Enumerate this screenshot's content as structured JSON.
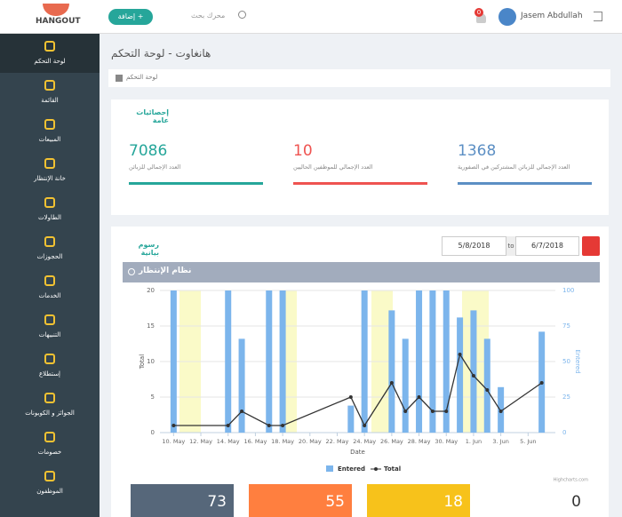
{
  "topbar": {
    "logo": "HANGOUT",
    "add_button": "إضافة",
    "search_placeholder": "محرك بحث",
    "notifications": "0",
    "user": "Jasem Abdullah"
  },
  "sidebar": [
    "لوحة التحكم",
    "القائمة",
    "المبيعات",
    "خانة الإنتظار",
    "الطاولات",
    "الحجوزات",
    "الخدمات",
    "التنبيهات",
    "إستطلاع",
    "الجوائز و الكوبونات",
    "خصومات",
    "الموظفون"
  ],
  "page_title": "هانغاوت - لوحة التحكم",
  "breadcrumb": "لوحة التحكم",
  "stats": {
    "title": "إحصائيات عامة",
    "items": [
      {
        "value": "7086",
        "label": "العدد الإجمالي للزبائن",
        "color": "#26a69a"
      },
      {
        "value": "10",
        "label": "العدد الإجمالي للموظفين الحاليين",
        "color": "#ef5350"
      },
      {
        "value": "1368",
        "label": "العدد الإجمالي للزبائن المشتركين في الصفورية",
        "color": "#5c8fc4"
      }
    ]
  },
  "charts_section": {
    "title": "رسوم بيانية",
    "from": "5/8/2018",
    "to_label": "to",
    "to": "6/7/2018"
  },
  "chart_data": {
    "type": "bar",
    "title": "نظام الإنتظار",
    "x": [
      10,
      14,
      15,
      17,
      18,
      23,
      24,
      26,
      27,
      28,
      29,
      30,
      31,
      32,
      33,
      34,
      37
    ],
    "series": [
      {
        "name": "Entered",
        "type": "bar",
        "axis": "y2",
        "color": "#7cb5ec",
        "values": [
          100,
          100,
          66,
          100,
          100,
          19,
          100,
          86,
          66,
          100,
          100,
          100,
          81,
          86,
          66,
          32,
          71
        ]
      },
      {
        "name": "Total",
        "type": "line",
        "color": "#333333",
        "values": [
          1,
          1,
          3,
          1,
          1,
          5,
          1,
          7,
          3,
          5,
          3,
          3,
          11,
          8,
          6,
          3,
          7
        ]
      }
    ],
    "xlim": [
      9,
      38
    ],
    "xticks": [
      {
        "value": 10,
        "label": "10. May"
      },
      {
        "value": 12,
        "label": "12. May"
      },
      {
        "value": 14,
        "label": "14. May"
      },
      {
        "value": 16,
        "label": "16. May"
      },
      {
        "value": 18,
        "label": "18. May"
      },
      {
        "value": 20,
        "label": "20. May"
      },
      {
        "value": 22,
        "label": "22. May"
      },
      {
        "value": 24,
        "label": "24. May"
      },
      {
        "value": 26,
        "label": "26. May"
      },
      {
        "value": 28,
        "label": "28. May"
      },
      {
        "value": 30,
        "label": "30. May"
      },
      {
        "value": 32,
        "label": "1. Jun"
      },
      {
        "value": 34,
        "label": "3. Jun"
      },
      {
        "value": 36,
        "label": "5. Jun"
      }
    ],
    "ylim": [
      0,
      20
    ],
    "yticks": [
      0,
      5,
      10,
      15,
      20
    ],
    "y2lim": [
      0,
      100
    ],
    "y2ticks": [
      0,
      25,
      50,
      75,
      100
    ],
    "xlabel": "Date",
    "ylabel": "Total",
    "y2label": "Entered",
    "credit": "Highcharts.com",
    "grid": true
  },
  "summary_boxes": [
    {
      "value": 73,
      "color": "#56677a"
    },
    {
      "value": 55,
      "color": "#ff7f3f"
    },
    {
      "value": 18,
      "color": "#f7c21b"
    },
    {
      "value": 0,
      "color": "#ffffff"
    }
  ]
}
